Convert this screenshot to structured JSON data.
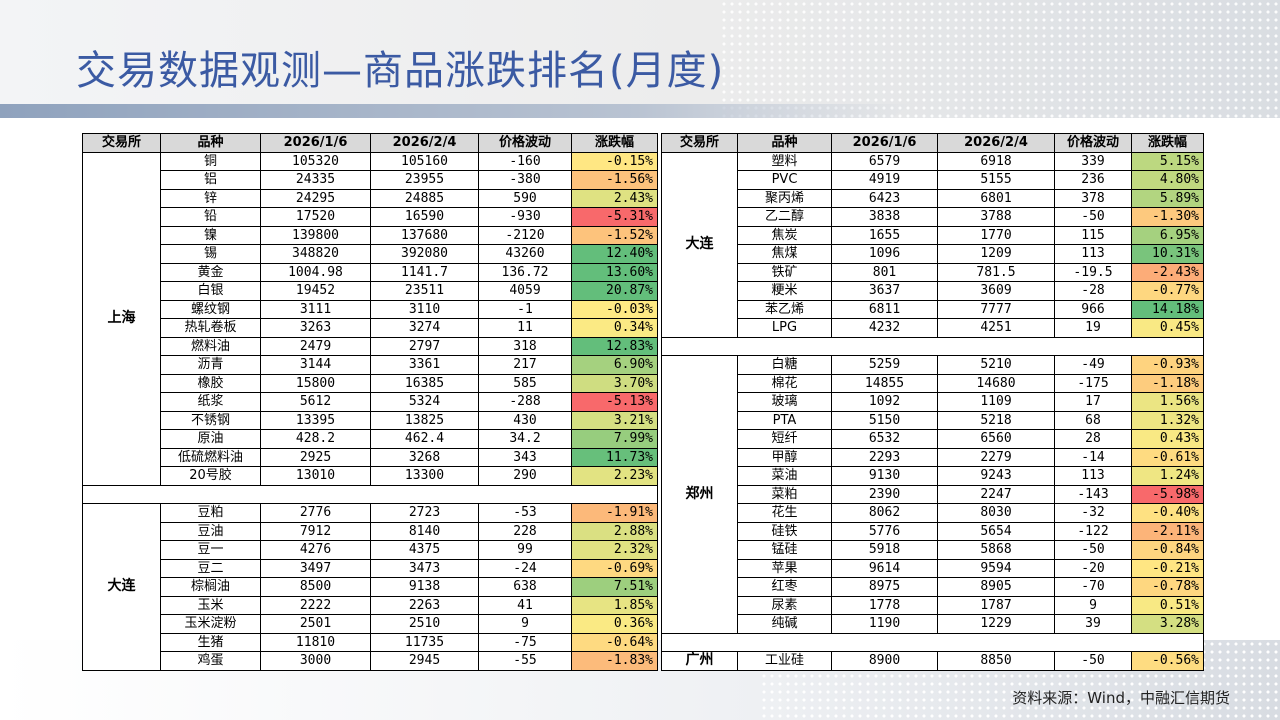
{
  "title": "交易数据观测—商品涨跌排名(月度)",
  "source": "资料来源：Wind，中融汇信期货",
  "headers": [
    "交易所",
    "品种",
    "2026/1/6",
    "2026/2/4",
    "价格波动",
    "涨跌幅"
  ],
  "left_groups": [
    {
      "exchange": "上海",
      "rows": [
        [
          "铜",
          "105320",
          "105160",
          "-160",
          "-0.15%"
        ],
        [
          "铝",
          "24335",
          "23955",
          "-380",
          "-1.56%"
        ],
        [
          "锌",
          "24295",
          "24885",
          "590",
          "2.43%"
        ],
        [
          "铅",
          "17520",
          "16590",
          "-930",
          "-5.31%"
        ],
        [
          "镍",
          "139800",
          "137680",
          "-2120",
          "-1.52%"
        ],
        [
          "锡",
          "348820",
          "392080",
          "43260",
          "12.40%"
        ],
        [
          "黄金",
          "1004.98",
          "1141.7",
          "136.72",
          "13.60%"
        ],
        [
          "白银",
          "19452",
          "23511",
          "4059",
          "20.87%"
        ],
        [
          "螺纹钢",
          "3111",
          "3110",
          "-1",
          "-0.03%"
        ],
        [
          "热轧卷板",
          "3263",
          "3274",
          "11",
          "0.34%"
        ],
        [
          "燃料油",
          "2479",
          "2797",
          "318",
          "12.83%"
        ],
        [
          "沥青",
          "3144",
          "3361",
          "217",
          "6.90%"
        ],
        [
          "橡胶",
          "15800",
          "16385",
          "585",
          "3.70%"
        ],
        [
          "纸浆",
          "5612",
          "5324",
          "-288",
          "-5.13%"
        ],
        [
          "不锈钢",
          "13395",
          "13825",
          "430",
          "3.21%"
        ],
        [
          "原油",
          "428.2",
          "462.4",
          "34.2",
          "7.99%"
        ],
        [
          "低硫燃料油",
          "2925",
          "3268",
          "343",
          "11.73%"
        ],
        [
          "20号胶",
          "13010",
          "13300",
          "290",
          "2.23%"
        ]
      ]
    },
    {
      "exchange": "大连",
      "rows": [
        [
          "豆粕",
          "2776",
          "2723",
          "-53",
          "-1.91%"
        ],
        [
          "豆油",
          "7912",
          "8140",
          "228",
          "2.88%"
        ],
        [
          "豆一",
          "4276",
          "4375",
          "99",
          "2.32%"
        ],
        [
          "豆二",
          "3497",
          "3473",
          "-24",
          "-0.69%"
        ],
        [
          "棕榈油",
          "8500",
          "9138",
          "638",
          "7.51%"
        ],
        [
          "玉米",
          "2222",
          "2263",
          "41",
          "1.85%"
        ],
        [
          "玉米淀粉",
          "2501",
          "2510",
          "9",
          "0.36%"
        ],
        [
          "生猪",
          "11810",
          "11735",
          "-75",
          "-0.64%"
        ],
        [
          "鸡蛋",
          "3000",
          "2945",
          "-55",
          "-1.83%"
        ]
      ]
    }
  ],
  "right_groups": [
    {
      "exchange": "大连",
      "rows": [
        [
          "塑料",
          "6579",
          "6918",
          "339",
          "5.15%"
        ],
        [
          "PVC",
          "4919",
          "5155",
          "236",
          "4.80%"
        ],
        [
          "聚丙烯",
          "6423",
          "6801",
          "378",
          "5.89%"
        ],
        [
          "乙二醇",
          "3838",
          "3788",
          "-50",
          "-1.30%"
        ],
        [
          "焦炭",
          "1655",
          "1770",
          "115",
          "6.95%"
        ],
        [
          "焦煤",
          "1096",
          "1209",
          "113",
          "10.31%"
        ],
        [
          "铁矿",
          "801",
          "781.5",
          "-19.5",
          "-2.43%"
        ],
        [
          "粳米",
          "3637",
          "3609",
          "-28",
          "-0.77%"
        ],
        [
          "苯乙烯",
          "6811",
          "7777",
          "966",
          "14.18%"
        ],
        [
          "LPG",
          "4232",
          "4251",
          "19",
          "0.45%"
        ]
      ]
    },
    {
      "exchange": "郑州",
      "rows": [
        [
          "白糖",
          "5259",
          "5210",
          "-49",
          "-0.93%"
        ],
        [
          "棉花",
          "14855",
          "14680",
          "-175",
          "-1.18%"
        ],
        [
          "玻璃",
          "1092",
          "1109",
          "17",
          "1.56%"
        ],
        [
          "PTA",
          "5150",
          "5218",
          "68",
          "1.32%"
        ],
        [
          "短纤",
          "6532",
          "6560",
          "28",
          "0.43%"
        ],
        [
          "甲醇",
          "2293",
          "2279",
          "-14",
          "-0.61%"
        ],
        [
          "菜油",
          "9130",
          "9243",
          "113",
          "1.24%"
        ],
        [
          "菜粕",
          "2390",
          "2247",
          "-143",
          "-5.98%"
        ],
        [
          "花生",
          "8062",
          "8030",
          "-32",
          "-0.40%"
        ],
        [
          "硅铁",
          "5776",
          "5654",
          "-122",
          "-2.11%"
        ],
        [
          "锰硅",
          "5918",
          "5868",
          "-50",
          "-0.84%"
        ],
        [
          "苹果",
          "9614",
          "9594",
          "-20",
          "-0.21%"
        ],
        [
          "红枣",
          "8975",
          "8905",
          "-70",
          "-0.78%"
        ],
        [
          "尿素",
          "1778",
          "1787",
          "9",
          "0.51%"
        ],
        [
          "纯碱",
          "1190",
          "1229",
          "39",
          "3.28%"
        ]
      ]
    },
    {
      "exchange": "广州",
      "rows": [
        [
          "工业硅",
          "8900",
          "8850",
          "-50",
          "-0.56%"
        ]
      ]
    }
  ],
  "colors": {
    "green": "#63be7b",
    "yellow": "#ffeb84",
    "red": "#f8696b",
    "title": "#3b5aa3"
  }
}
